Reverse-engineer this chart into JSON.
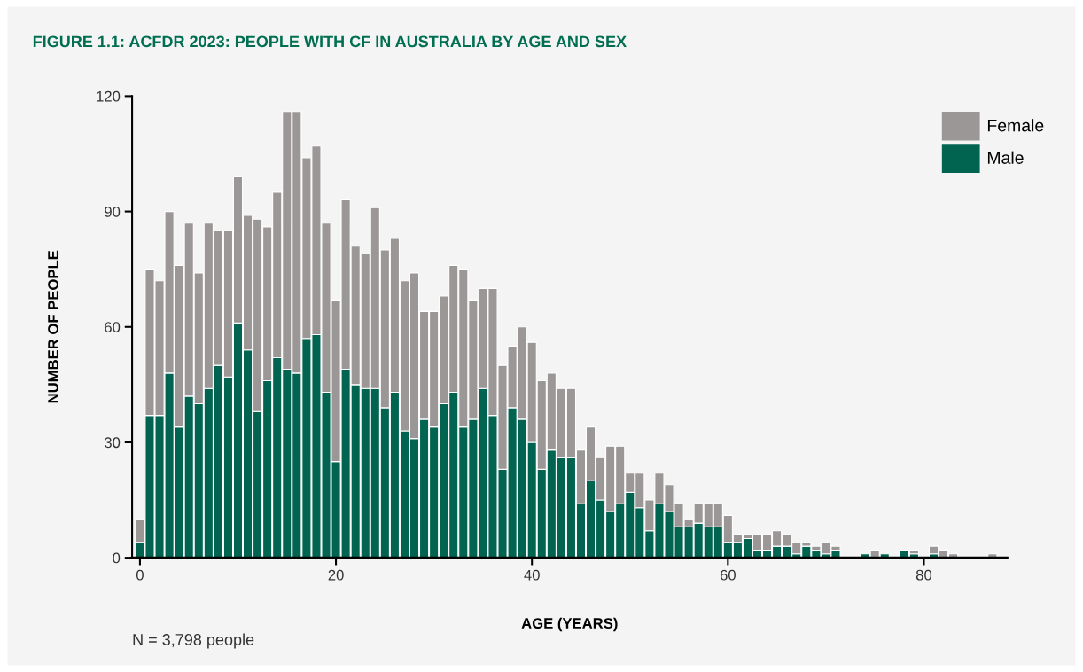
{
  "chart_data": {
    "type": "bar",
    "stacked": true,
    "title": "FIGURE 1.1: ACFDR 2023: PEOPLE WITH CF IN AUSTRALIA BY AGE AND SEX",
    "xlabel": "AGE (YEARS)",
    "ylabel": "NUMBER OF PEOPLE",
    "annotations": [
      "N = 3,798 people"
    ],
    "x": [
      0,
      1,
      2,
      3,
      4,
      5,
      6,
      7,
      8,
      9,
      10,
      11,
      12,
      13,
      14,
      15,
      16,
      17,
      18,
      19,
      20,
      21,
      22,
      23,
      24,
      25,
      26,
      27,
      28,
      29,
      30,
      31,
      32,
      33,
      34,
      35,
      36,
      37,
      38,
      39,
      40,
      41,
      42,
      43,
      44,
      45,
      46,
      47,
      48,
      49,
      50,
      51,
      52,
      53,
      54,
      55,
      56,
      57,
      58,
      59,
      60,
      61,
      62,
      63,
      64,
      65,
      66,
      67,
      68,
      69,
      70,
      71,
      72,
      73,
      74,
      75,
      76,
      77,
      78,
      79,
      80,
      81,
      82,
      83,
      84,
      85,
      86,
      87
    ],
    "series": [
      {
        "name": "Male",
        "color": "#006450",
        "values": [
          4,
          37,
          37,
          48,
          34,
          42,
          40,
          44,
          50,
          47,
          61,
          54,
          38,
          46,
          52,
          49,
          48,
          57,
          58,
          43,
          25,
          49,
          45,
          44,
          44,
          39,
          43,
          33,
          31,
          36,
          34,
          40,
          43,
          34,
          36,
          44,
          37,
          23,
          39,
          36,
          30,
          23,
          28,
          26,
          26,
          14,
          20,
          15,
          12,
          14,
          17,
          13,
          7,
          14,
          12,
          8,
          8,
          9,
          8,
          8,
          4,
          4,
          5,
          2,
          2,
          3,
          3,
          1,
          3,
          2,
          1,
          2,
          0,
          0,
          1,
          0,
          1,
          0,
          2,
          1,
          0,
          1,
          0,
          0,
          0,
          0,
          0,
          0
        ]
      },
      {
        "name": "Female",
        "color": "#9b9796",
        "values": [
          6,
          38,
          35,
          42,
          42,
          45,
          34,
          43,
          35,
          38,
          38,
          35,
          50,
          40,
          43,
          67,
          68,
          47,
          49,
          44,
          42,
          44,
          36,
          35,
          47,
          41,
          40,
          39,
          43,
          28,
          30,
          28,
          33,
          41,
          31,
          26,
          33,
          27,
          16,
          24,
          26,
          23,
          20,
          18,
          18,
          14,
          14,
          11,
          17,
          15,
          5,
          9,
          8,
          8,
          7,
          6,
          2,
          5,
          6,
          6,
          7,
          2,
          1,
          4,
          4,
          4,
          3,
          3,
          1,
          1,
          3,
          1,
          0,
          0,
          0,
          2,
          0,
          0,
          0,
          1,
          0,
          2,
          2,
          1,
          0,
          0,
          0,
          1
        ]
      }
    ],
    "xlim": [
      -0.8,
      88.5
    ],
    "xticks": [
      0,
      20,
      40,
      60,
      80
    ],
    "ylim": [
      0,
      120
    ],
    "yticks": [
      0,
      30,
      60,
      90,
      120
    ],
    "legend": "top right"
  }
}
